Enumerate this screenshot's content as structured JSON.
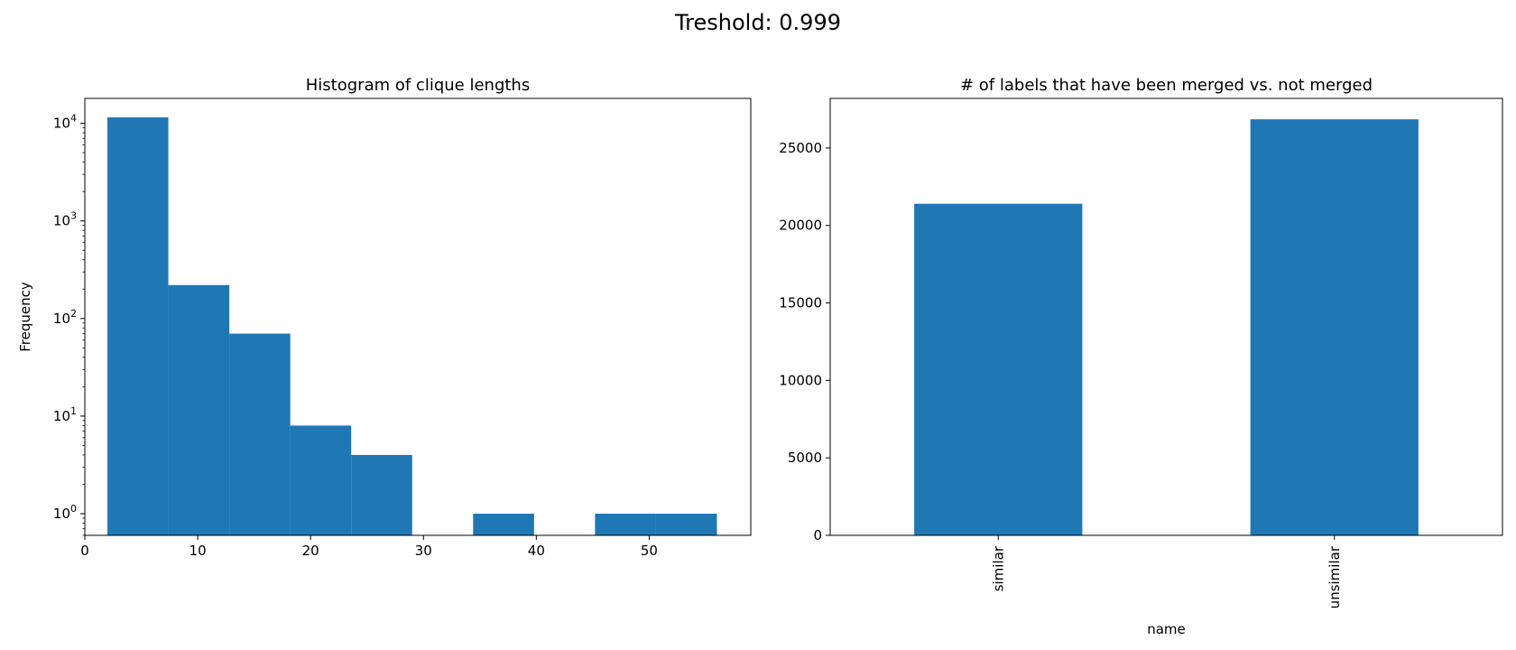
{
  "figure": {
    "suptitle": "Treshold: 0.999"
  },
  "chart_data": [
    {
      "type": "bar",
      "subtype": "histogram",
      "title": "Histogram of clique lengths",
      "xlabel": "",
      "ylabel": "Frequency",
      "yscale": "log",
      "xlim": [
        0,
        59
      ],
      "ylim": [
        0.6,
        18000
      ],
      "bin_edges": [
        2,
        7.4,
        12.8,
        18.2,
        23.6,
        29,
        34.4,
        39.8,
        45.2,
        50.6,
        56
      ],
      "values": [
        11500,
        220,
        70,
        8,
        4,
        0,
        1,
        0,
        1,
        1
      ],
      "x_ticks": [
        0,
        10,
        20,
        30,
        40,
        50
      ],
      "y_ticks": [
        1,
        10,
        100,
        1000,
        10000
      ],
      "y_tick_labels": [
        {
          "base": "10",
          "exp": "0"
        },
        {
          "base": "10",
          "exp": "1"
        },
        {
          "base": "10",
          "exp": "2"
        },
        {
          "base": "10",
          "exp": "3"
        },
        {
          "base": "10",
          "exp": "4"
        }
      ],
      "grid": false,
      "color": "#1f77b4"
    },
    {
      "type": "bar",
      "title": "# of labels that have been merged vs. not merged",
      "xlabel": "name",
      "ylabel": "",
      "categories": [
        "similar",
        "unsimilar"
      ],
      "values": [
        21400,
        26850
      ],
      "ylim": [
        0,
        28200
      ],
      "y_ticks": [
        0,
        5000,
        10000,
        15000,
        20000,
        25000
      ],
      "grid": false,
      "color": "#1f77b4"
    }
  ]
}
